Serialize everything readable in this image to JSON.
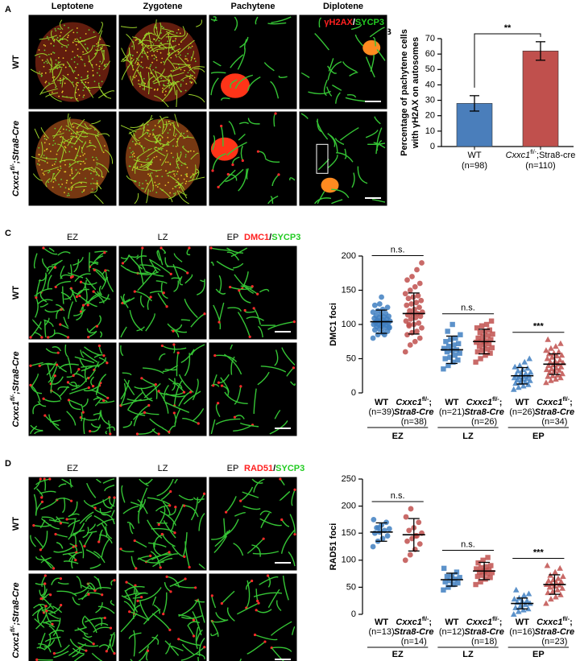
{
  "figure": {
    "panels": [
      "A",
      "B",
      "C",
      "D"
    ],
    "genotypes": [
      "WT",
      {
        "gene": "Cxxc1",
        "sup": "fl/-",
        "rest": ";Stra8-Cre"
      }
    ],
    "a": {
      "columns": [
        "Leptotene",
        "Zygotene",
        "Pachytene",
        "Diplotene"
      ],
      "stain": [
        "γH2AX",
        "/",
        "SYCP3"
      ]
    },
    "c": {
      "columns": [
        "EZ",
        "LZ",
        "EP"
      ],
      "stain": [
        "DMC1",
        "/",
        "SYCP3"
      ]
    },
    "d": {
      "columns": [
        "EZ",
        "LZ",
        "EP"
      ],
      "stain": [
        "RAD51",
        "/",
        "SYCP3"
      ]
    }
  },
  "chart_data": [
    {
      "type": "bar",
      "ylabel": [
        "Percentage of pachytene cells",
        "with γH2AX on autosomes"
      ],
      "categories": [
        "WT",
        {
          "gene": "Cxxc1",
          "sup": "fl/-",
          "rest": ";Stra8-cre"
        }
      ],
      "n_labels": [
        "(n=98)",
        "(n=110)"
      ],
      "colors": [
        "#4a7ebb",
        "#c0504d"
      ],
      "values": [
        28,
        62
      ],
      "errors": [
        5,
        6
      ],
      "significance": "**",
      "ylim": [
        0,
        70
      ],
      "yticks": [
        0,
        10,
        20,
        30,
        40,
        50,
        60,
        70
      ]
    },
    {
      "type": "strip",
      "ylabel": "DMC1 foci",
      "ylim": [
        0,
        200
      ],
      "yticks": [
        0,
        50,
        100,
        150,
        200
      ],
      "stages": [
        {
          "name": "EZ",
          "marker": "circle",
          "significance": "n.s.",
          "series": [
            {
              "label": "WT",
              "n_label": "(n=39)",
              "color": "#3f7fc1",
              "mean": 104,
              "sd": 17,
              "values": [
                80,
                85,
                88,
                90,
                92,
                93,
                95,
                96,
                97,
                98,
                99,
                100,
                100,
                101,
                102,
                103,
                104,
                104,
                105,
                106,
                107,
                108,
                109,
                110,
                111,
                112,
                113,
                115,
                116,
                118,
                120,
                122,
                125,
                128,
                130,
                85,
                95,
                105,
                140
              ]
            },
            {
              "label": {
                "gene": "Cxxc1",
                "sup": "fl/-",
                "rest": ";"
              },
              "label2": "Stra8-Cre",
              "n_label": "(n=38)",
              "color": "#c0504d",
              "mean": 116,
              "sd": 30,
              "values": [
                60,
                70,
                75,
                80,
                85,
                88,
                90,
                95,
                98,
                100,
                102,
                105,
                108,
                110,
                112,
                114,
                115,
                116,
                118,
                120,
                122,
                125,
                128,
                130,
                132,
                135,
                138,
                140,
                142,
                145,
                150,
                155,
                160,
                165,
                170,
                180,
                190,
                100
              ]
            }
          ]
        },
        {
          "name": "LZ",
          "marker": "square",
          "significance": "n.s.",
          "series": [
            {
              "label": "WT",
              "n_label": "(n=21)",
              "color": "#3f7fc1",
              "mean": 63,
              "sd": 20,
              "values": [
                35,
                40,
                45,
                48,
                50,
                52,
                55,
                58,
                60,
                62,
                63,
                65,
                68,
                70,
                72,
                75,
                78,
                80,
                85,
                90,
                100
              ]
            },
            {
              "label": {
                "gene": "Cxxc1",
                "sup": "fl/-",
                "rest": ";"
              },
              "label2": "Stra8-Cre",
              "n_label": "(n=26)",
              "color": "#c0504d",
              "mean": 75,
              "sd": 18,
              "values": [
                45,
                50,
                55,
                58,
                60,
                62,
                64,
                66,
                68,
                70,
                72,
                74,
                75,
                76,
                78,
                80,
                82,
                84,
                86,
                88,
                90,
                92,
                95,
                98,
                100,
                105
              ]
            }
          ]
        },
        {
          "name": "EP",
          "marker": "triangle",
          "significance": "***",
          "series": [
            {
              "label": "WT",
              "n_label": "(n=26)",
              "color": "#3f7fc1",
              "mean": 25,
              "sd": 12,
              "values": [
                5,
                8,
                10,
                12,
                14,
                15,
                16,
                18,
                19,
                20,
                21,
                22,
                23,
                24,
                25,
                26,
                27,
                28,
                30,
                32,
                34,
                36,
                38,
                40,
                45,
                50
              ]
            },
            {
              "label": {
                "gene": "Cxxc1",
                "sup": "fl/-",
                "rest": ";"
              },
              "label2": "Stra8-Cre",
              "n_label": "(n=34)",
              "color": "#c0504d",
              "mean": 42,
              "sd": 15,
              "values": [
                15,
                18,
                20,
                22,
                24,
                25,
                26,
                28,
                30,
                32,
                33,
                34,
                35,
                36,
                38,
                40,
                41,
                42,
                44,
                45,
                46,
                48,
                50,
                52,
                54,
                55,
                57,
                58,
                60,
                62,
                65,
                68,
                72,
                78
              ]
            }
          ]
        }
      ]
    },
    {
      "type": "strip",
      "ylabel": "RAD51 foci",
      "ylim": [
        0,
        250
      ],
      "yticks": [
        0,
        50,
        100,
        150,
        200,
        250
      ],
      "stages": [
        {
          "name": "EZ",
          "marker": "circle",
          "significance": "n.s.",
          "series": [
            {
              "label": "WT",
              "n_label": "(n=13)",
              "color": "#3f7fc1",
              "mean": 152,
              "sd": 17,
              "values": [
                125,
                135,
                140,
                145,
                150,
                152,
                155,
                158,
                160,
                165,
                170,
                175,
                160
              ]
            },
            {
              "label": {
                "gene": "Cxxc1",
                "sup": "fl/-",
                "rest": ";"
              },
              "label2": "Stra8-Cre",
              "n_label": "(n=14)",
              "color": "#c0504d",
              "mean": 147,
              "sd": 30,
              "values": [
                100,
                110,
                120,
                130,
                135,
                140,
                145,
                150,
                155,
                160,
                170,
                180,
                195,
                145
              ]
            }
          ]
        },
        {
          "name": "LZ",
          "marker": "square",
          "significance": "n.s.",
          "series": [
            {
              "label": "WT",
              "n_label": "(n=12)",
              "color": "#3f7fc1",
              "mean": 64,
              "sd": 12,
              "values": [
                45,
                50,
                55,
                58,
                60,
                62,
                65,
                68,
                70,
                72,
                78,
                85
              ]
            },
            {
              "label": {
                "gene": "Cxxc1",
                "sup": "fl/-",
                "rest": ";"
              },
              "label2": "Stra8-Cre",
              "n_label": "(n=18)",
              "color": "#c0504d",
              "mean": 80,
              "sd": 16,
              "values": [
                55,
                60,
                65,
                68,
                70,
                72,
                75,
                77,
                78,
                80,
                82,
                84,
                86,
                88,
                90,
                95,
                100,
                105
              ]
            }
          ]
        },
        {
          "name": "EP",
          "marker": "triangle",
          "significance": "***",
          "series": [
            {
              "label": "WT",
              "n_label": "(n=16)",
              "color": "#3f7fc1",
              "mean": 20,
              "sd": 10,
              "values": [
                0,
                5,
                8,
                10,
                12,
                15,
                18,
                20,
                22,
                24,
                25,
                28,
                30,
                35,
                38,
                45
              ]
            },
            {
              "label": {
                "gene": "Cxxc1",
                "sup": "fl/-",
                "rest": ";"
              },
              "label2": "Stra8-Cre",
              "n_label": "(n=23)",
              "color": "#c0504d",
              "mean": 55,
              "sd": 18,
              "values": [
                20,
                28,
                32,
                36,
                40,
                42,
                45,
                48,
                50,
                52,
                54,
                55,
                56,
                58,
                60,
                62,
                64,
                66,
                70,
                72,
                78,
                85,
                90
              ]
            }
          ]
        }
      ]
    }
  ]
}
